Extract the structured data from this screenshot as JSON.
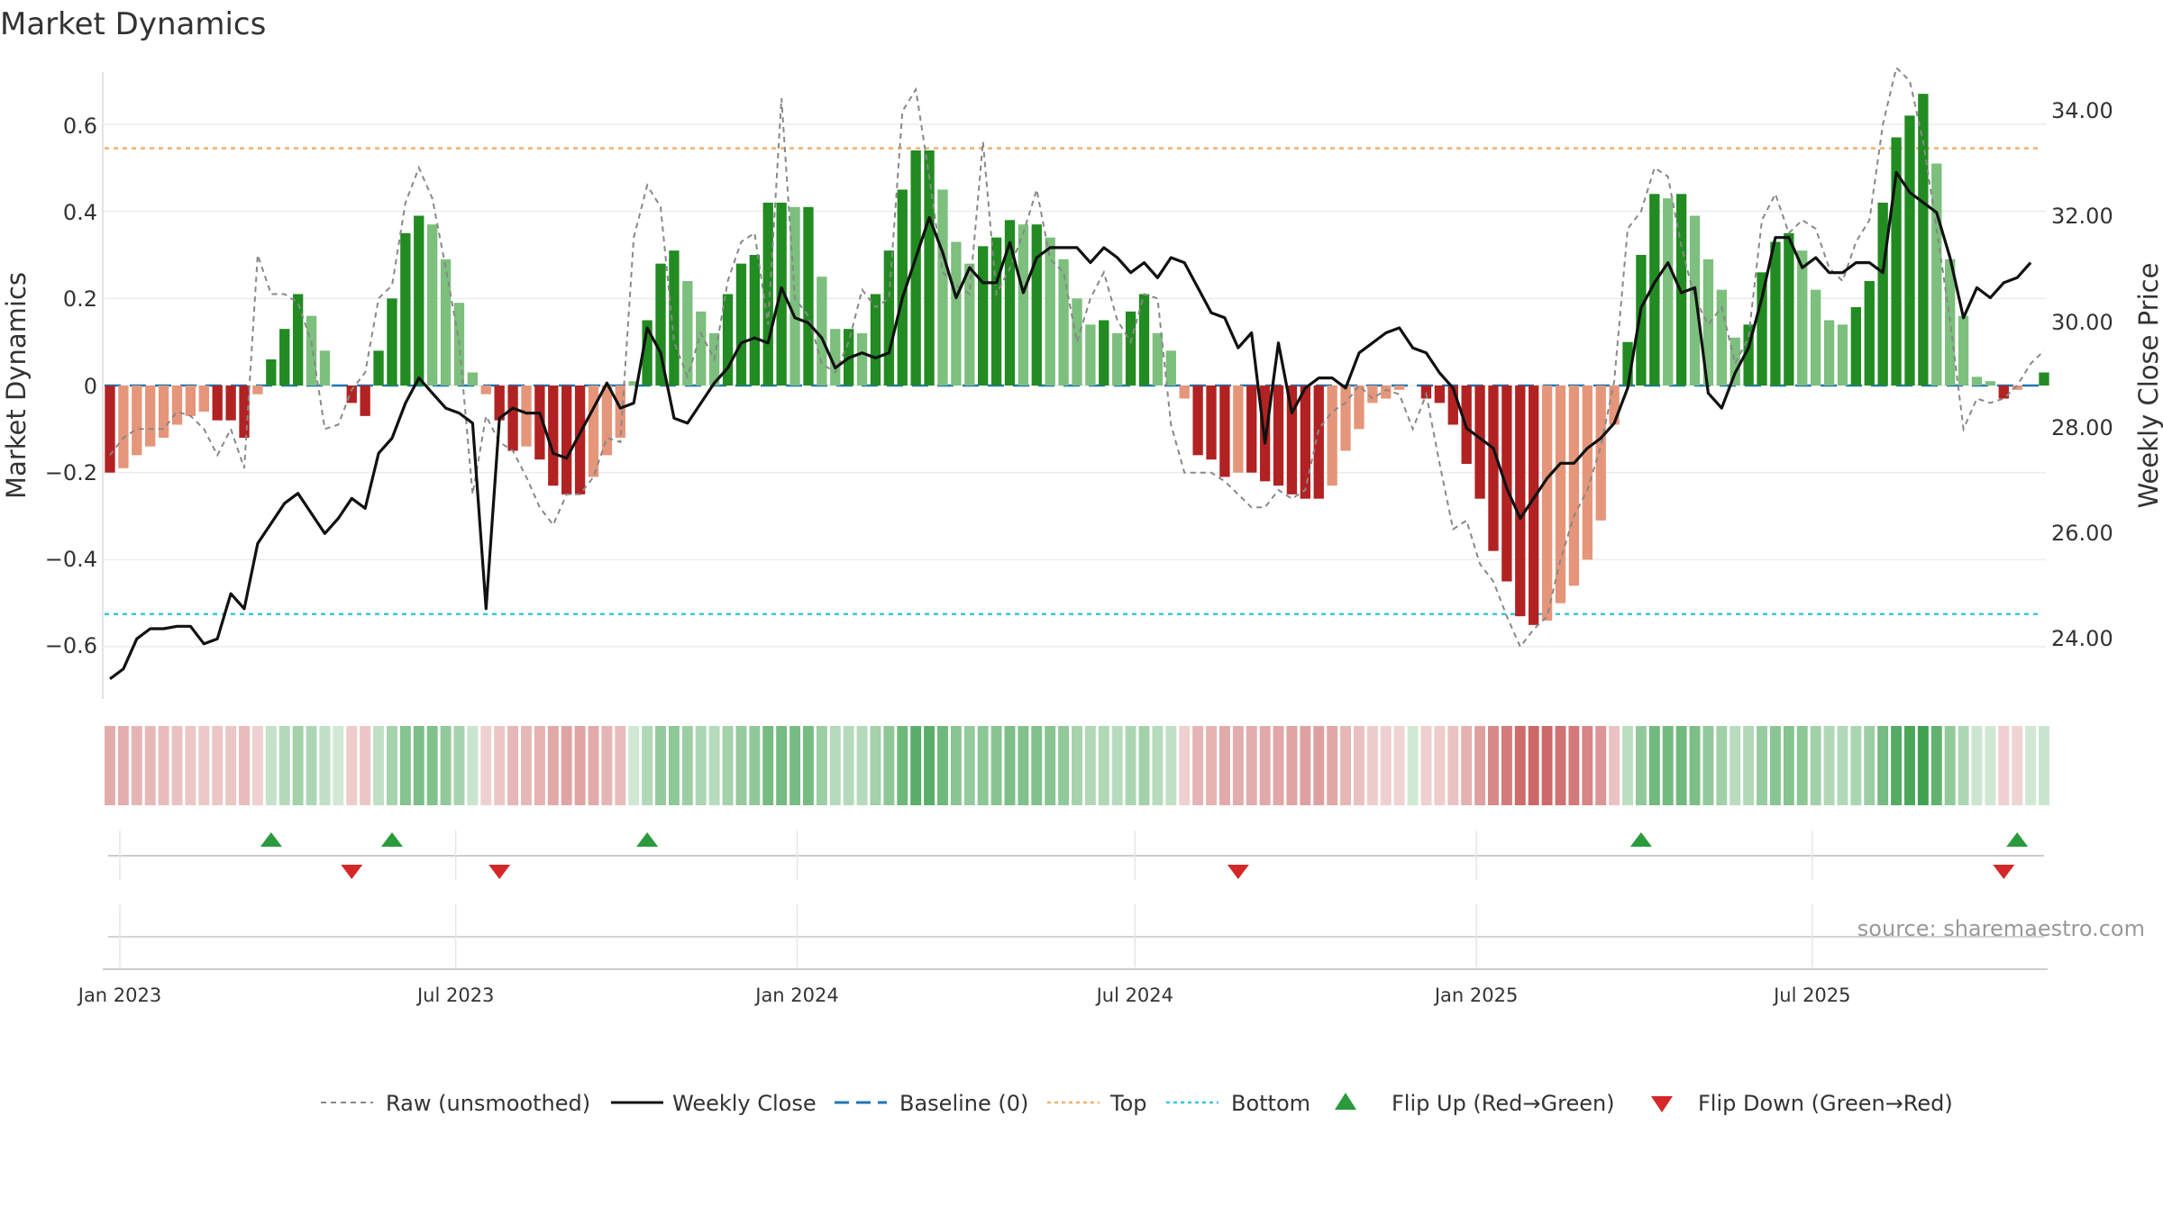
{
  "title": "Market Dynamics",
  "source": "source: sharemaestro.com",
  "colors": {
    "pos_strong": "#228b22",
    "pos_light": "#7dbf7d",
    "neg_strong": "#b22222",
    "neg_light": "#e5967a",
    "raw": "#888888",
    "close": "#111111",
    "baseline": "#1f77b4",
    "top": "#f0b070",
    "bottom": "#38c8d8",
    "flip_up": "#2a9a3c",
    "flip_down": "#d62728"
  },
  "chart_data": {
    "type": "bar",
    "left_axis": {
      "label": "Market Dynamics",
      "range": [
        -0.72,
        0.72
      ],
      "ticks": [
        "0.6",
        "0.4",
        "0.2",
        "0",
        "−0.2",
        "−0.4",
        "−0.6"
      ],
      "tick_values": [
        0.6,
        0.4,
        0.2,
        0,
        -0.2,
        -0.4,
        -0.6
      ]
    },
    "right_axis": {
      "label": "Weekly Close Price",
      "range": [
        23.0,
        35.5
      ],
      "ticks": [
        "34.00",
        "32.00",
        "30.00",
        "28.00",
        "26.00",
        "24.00"
      ],
      "tick_values": [
        34,
        32,
        30,
        28,
        26,
        24
      ]
    },
    "x_axis": {
      "start": "2023-01-01",
      "end": "2025-10-31",
      "ticks": [
        "Jan 2023",
        "Jul 2023",
        "Jan 2024",
        "Jul 2024",
        "Jan 2025",
        "Jul 2025"
      ],
      "tick_dates": [
        "2023-01-01",
        "2023-07-01",
        "2024-01-01",
        "2024-07-01",
        "2025-01-01",
        "2025-07-01"
      ]
    },
    "levels": {
      "top": 0.545,
      "bottom": -0.525,
      "baseline": 0
    },
    "dynamics": [
      -0.2,
      -0.19,
      -0.16,
      -0.14,
      -0.12,
      -0.09,
      -0.07,
      -0.06,
      -0.08,
      -0.08,
      -0.12,
      -0.02,
      0.06,
      0.13,
      0.21,
      0.16,
      0.08,
      0.0,
      -0.04,
      -0.07,
      0.08,
      0.2,
      0.35,
      0.39,
      0.37,
      0.29,
      0.19,
      0.03,
      -0.02,
      -0.08,
      -0.15,
      -0.14,
      -0.17,
      -0.23,
      -0.25,
      -0.25,
      -0.21,
      -0.16,
      -0.12,
      0.01,
      0.15,
      0.28,
      0.31,
      0.24,
      0.17,
      0.12,
      0.21,
      0.28,
      0.3,
      0.42,
      0.42,
      0.41,
      0.41,
      0.25,
      0.13,
      0.13,
      0.12,
      0.21,
      0.31,
      0.45,
      0.54,
      0.54,
      0.45,
      0.33,
      0.28,
      0.32,
      0.34,
      0.38,
      0.37,
      0.37,
      0.34,
      0.29,
      0.2,
      0.14,
      0.15,
      0.12,
      0.17,
      0.21,
      0.12,
      0.08,
      -0.03,
      -0.16,
      -0.17,
      -0.21,
      -0.2,
      -0.2,
      -0.22,
      -0.23,
      -0.25,
      -0.26,
      -0.26,
      -0.23,
      -0.15,
      -0.1,
      -0.04,
      -0.03,
      -0.01,
      0.0,
      -0.03,
      -0.04,
      -0.09,
      -0.18,
      -0.26,
      -0.38,
      -0.45,
      -0.53,
      -0.55,
      -0.54,
      -0.5,
      -0.46,
      -0.4,
      -0.31,
      -0.09,
      0.1,
      0.3,
      0.44,
      0.43,
      0.44,
      0.39,
      0.29,
      0.22,
      0.11,
      0.14,
      0.26,
      0.33,
      0.35,
      0.31,
      0.22,
      0.15,
      0.14,
      0.18,
      0.24,
      0.42,
      0.57,
      0.62,
      0.67,
      0.51,
      0.29,
      0.16,
      0.02,
      0.01,
      -0.03,
      -0.01,
      0.0,
      0.03
    ],
    "raw": [
      -0.16,
      -0.12,
      -0.1,
      -0.1,
      -0.1,
      -0.06,
      -0.07,
      -0.1,
      -0.16,
      -0.1,
      -0.19,
      0.3,
      0.21,
      0.21,
      0.19,
      0.1,
      -0.1,
      -0.09,
      -0.01,
      0.03,
      0.2,
      0.23,
      0.42,
      0.5,
      0.43,
      0.27,
      0.1,
      -0.25,
      -0.07,
      -0.13,
      -0.15,
      -0.21,
      -0.28,
      -0.32,
      -0.25,
      -0.25,
      -0.21,
      -0.12,
      -0.13,
      0.34,
      0.46,
      0.41,
      0.1,
      0.02,
      0.12,
      0.06,
      0.24,
      0.33,
      0.35,
      0.14,
      0.66,
      0.2,
      0.16,
      0.05,
      0.03,
      0.1,
      0.22,
      0.18,
      0.2,
      0.63,
      0.68,
      0.48,
      0.26,
      0.23,
      0.21,
      0.56,
      0.21,
      0.27,
      0.35,
      0.45,
      0.29,
      0.26,
      0.1,
      0.2,
      0.26,
      0.15,
      0.1,
      0.21,
      0.2,
      -0.09,
      -0.2,
      -0.2,
      -0.2,
      -0.22,
      -0.25,
      -0.28,
      -0.28,
      -0.24,
      -0.26,
      -0.24,
      -0.1,
      -0.06,
      -0.04,
      0.0,
      -0.03,
      -0.01,
      -0.02,
      -0.1,
      -0.02,
      -0.18,
      -0.33,
      -0.31,
      -0.41,
      -0.45,
      -0.53,
      -0.6,
      -0.56,
      -0.53,
      -0.4,
      -0.3,
      -0.24,
      -0.14,
      0.01,
      0.36,
      0.4,
      0.5,
      0.48,
      0.32,
      0.2,
      0.14,
      0.18,
      0.05,
      0.11,
      0.38,
      0.44,
      0.35,
      0.38,
      0.36,
      0.27,
      0.24,
      0.33,
      0.38,
      0.6,
      0.73,
      0.7,
      0.56,
      0.36,
      0.15,
      -0.1,
      -0.03,
      -0.04,
      -0.03,
      0.0,
      0.05,
      0.08
    ],
    "weekly_close": [
      23.4,
      23.6,
      24.2,
      24.4,
      24.4,
      24.45,
      24.45,
      24.1,
      24.2,
      25.1,
      24.8,
      26.1,
      26.5,
      26.9,
      27.1,
      26.7,
      26.3,
      26.6,
      27.0,
      26.8,
      27.9,
      28.2,
      28.9,
      29.4,
      29.1,
      28.8,
      28.7,
      28.5,
      24.8,
      28.6,
      28.8,
      28.7,
      28.7,
      27.9,
      27.8,
      28.3,
      28.8,
      29.3,
      28.8,
      28.9,
      30.4,
      29.9,
      28.6,
      28.5,
      28.9,
      29.3,
      29.6,
      30.1,
      30.2,
      30.1,
      31.2,
      30.6,
      30.5,
      30.2,
      29.6,
      29.8,
      29.9,
      29.8,
      29.9,
      31.0,
      31.8,
      32.6,
      31.9,
      31.0,
      31.6,
      31.3,
      31.3,
      32.1,
      31.1,
      31.8,
      32.0,
      32.0,
      32.0,
      31.7,
      32.0,
      31.8,
      31.5,
      31.7,
      31.4,
      31.8,
      31.7,
      31.2,
      30.7,
      30.6,
      30.0,
      30.3,
      28.1,
      30.1,
      28.7,
      29.2,
      29.4,
      29.4,
      29.2,
      29.9,
      30.1,
      30.3,
      30.4,
      30.0,
      29.9,
      29.5,
      29.2,
      28.4,
      28.2,
      28.0,
      27.2,
      26.6,
      27.0,
      27.4,
      27.7,
      27.7,
      28.0,
      28.2,
      28.5,
      29.2,
      30.8,
      31.3,
      31.7,
      31.1,
      31.2,
      29.1,
      28.8,
      29.5,
      30.0,
      31.0,
      32.2,
      32.2,
      31.6,
      31.8,
      31.5,
      31.5,
      31.7,
      31.7,
      31.5,
      33.5,
      33.1,
      32.9,
      32.7,
      31.8,
      30.6,
      31.2,
      31.0,
      31.3,
      31.4,
      31.7
    ]
  },
  "flips": {
    "up": [
      12,
      21,
      40,
      114,
      142
    ],
    "down": [
      18,
      29,
      84,
      141
    ]
  },
  "heatmap": {
    "strength": [
      0.28,
      0.27,
      0.23,
      0.2,
      0.17,
      0.13,
      0.1,
      0.09,
      0.11,
      0.11,
      0.17,
      0.03,
      0.08,
      0.18,
      0.3,
      0.23,
      0.11,
      0.0,
      0.06,
      0.1,
      0.11,
      0.28,
      0.49,
      0.55,
      0.52,
      0.41,
      0.27,
      0.04,
      0.03,
      0.11,
      0.21,
      0.2,
      0.24,
      0.32,
      0.35,
      0.35,
      0.3,
      0.23,
      0.17,
      0.01,
      0.21,
      0.39,
      0.44,
      0.34,
      0.24,
      0.17,
      0.3,
      0.39,
      0.42,
      0.59,
      0.59,
      0.58,
      0.58,
      0.35,
      0.18,
      0.18,
      0.17,
      0.3,
      0.44,
      0.63,
      0.76,
      0.76,
      0.63,
      0.46,
      0.39,
      0.45,
      0.48,
      0.54,
      0.52,
      0.52,
      0.48,
      0.41,
      0.28,
      0.2,
      0.21,
      0.17,
      0.24,
      0.3,
      0.17,
      0.11,
      0.04,
      0.23,
      0.24,
      0.3,
      0.28,
      0.28,
      0.31,
      0.32,
      0.35,
      0.37,
      0.37,
      0.32,
      0.21,
      0.14,
      0.06,
      0.04,
      0.01,
      0.0,
      0.04,
      0.06,
      0.13,
      0.25,
      0.37,
      0.54,
      0.63,
      0.75,
      0.77,
      0.76,
      0.7,
      0.65,
      0.56,
      0.44,
      0.13,
      0.14,
      0.42,
      0.62,
      0.61,
      0.62,
      0.55,
      0.41,
      0.31,
      0.15,
      0.2,
      0.37,
      0.46,
      0.49,
      0.44,
      0.31,
      0.21,
      0.2,
      0.25,
      0.34,
      0.59,
      0.8,
      0.87,
      0.94,
      0.72,
      0.41,
      0.23,
      0.03,
      0.01,
      0.04,
      0.01,
      0.0,
      0.04
    ]
  },
  "legend": [
    {
      "label": "Raw (unsmoothed)",
      "icon": "dashed-gray-line"
    },
    {
      "label": "Weekly Close",
      "icon": "solid-black-line"
    },
    {
      "label": "Baseline (0)",
      "icon": "dashed-blue-line"
    },
    {
      "label": "Top",
      "icon": "dotted-orange-line"
    },
    {
      "label": "Bottom",
      "icon": "dotted-cyan-line"
    },
    {
      "label": "Flip Up (Red→Green)",
      "icon": "green-up-triangle"
    },
    {
      "label": "Flip Down (Green→Red)",
      "icon": "red-down-triangle"
    }
  ]
}
